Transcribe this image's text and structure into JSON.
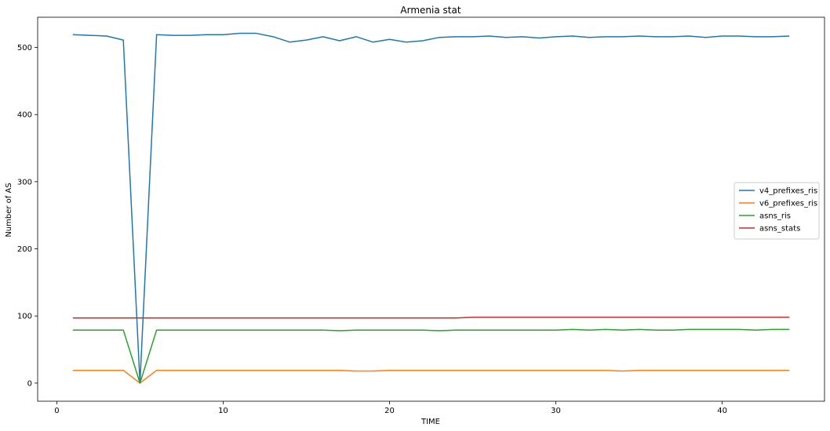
{
  "chart_data": {
    "type": "line",
    "title": "Armenia stat",
    "xlabel": "TIME",
    "ylabel": "Number of AS",
    "xlim": [
      -1.15,
      46.15
    ],
    "ylim": [
      -27,
      545
    ],
    "xticks": [
      0,
      10,
      20,
      30,
      40
    ],
    "yticks": [
      0,
      100,
      200,
      300,
      400,
      500
    ],
    "grid": false,
    "legend_position": "center-right",
    "x": [
      1,
      2,
      3,
      4,
      5,
      6,
      7,
      8,
      9,
      10,
      11,
      12,
      13,
      14,
      15,
      16,
      17,
      18,
      19,
      20,
      21,
      22,
      23,
      24,
      25,
      26,
      27,
      28,
      29,
      30,
      31,
      32,
      33,
      34,
      35,
      36,
      37,
      38,
      39,
      40,
      41,
      42,
      43,
      44
    ],
    "series": [
      {
        "name": "v4_prefixes_ris",
        "color": "#1f77b4",
        "values": [
          519,
          518,
          517,
          511,
          0,
          519,
          518,
          518,
          519,
          519,
          521,
          521,
          516,
          508,
          511,
          516,
          510,
          516,
          508,
          512,
          508,
          510,
          515,
          516,
          516,
          517,
          515,
          516,
          514,
          516,
          517,
          515,
          516,
          516,
          517,
          516,
          516,
          517,
          515,
          517,
          517,
          516,
          516,
          517
        ]
      },
      {
        "name": "v6_prefixes_ris",
        "color": "#ff7f0e",
        "values": [
          19,
          19,
          19,
          19,
          0,
          19,
          19,
          19,
          19,
          19,
          19,
          19,
          19,
          19,
          19,
          19,
          19,
          18,
          18,
          19,
          19,
          19,
          19,
          19,
          19,
          19,
          19,
          19,
          19,
          19,
          19,
          19,
          19,
          18,
          19,
          19,
          19,
          19,
          19,
          19,
          19,
          19,
          19,
          19
        ]
      },
      {
        "name": "asns_ris",
        "color": "#2ca02c",
        "values": [
          79,
          79,
          79,
          79,
          0,
          79,
          79,
          79,
          79,
          79,
          79,
          79,
          79,
          79,
          79,
          79,
          78,
          79,
          79,
          79,
          79,
          79,
          78,
          79,
          79,
          79,
          79,
          79,
          79,
          79,
          80,
          79,
          80,
          79,
          80,
          79,
          79,
          80,
          80,
          80,
          80,
          79,
          80,
          80
        ]
      },
      {
        "name": "asns_stats",
        "color": "#d62728",
        "values": [
          97,
          97,
          97,
          97,
          97,
          97,
          97,
          97,
          97,
          97,
          97,
          97,
          97,
          97,
          97,
          97,
          97,
          97,
          97,
          97,
          97,
          97,
          97,
          97,
          98,
          98,
          98,
          98,
          98,
          98,
          98,
          98,
          98,
          98,
          98,
          98,
          98,
          98,
          98,
          98,
          98,
          98,
          98,
          98
        ]
      }
    ]
  }
}
